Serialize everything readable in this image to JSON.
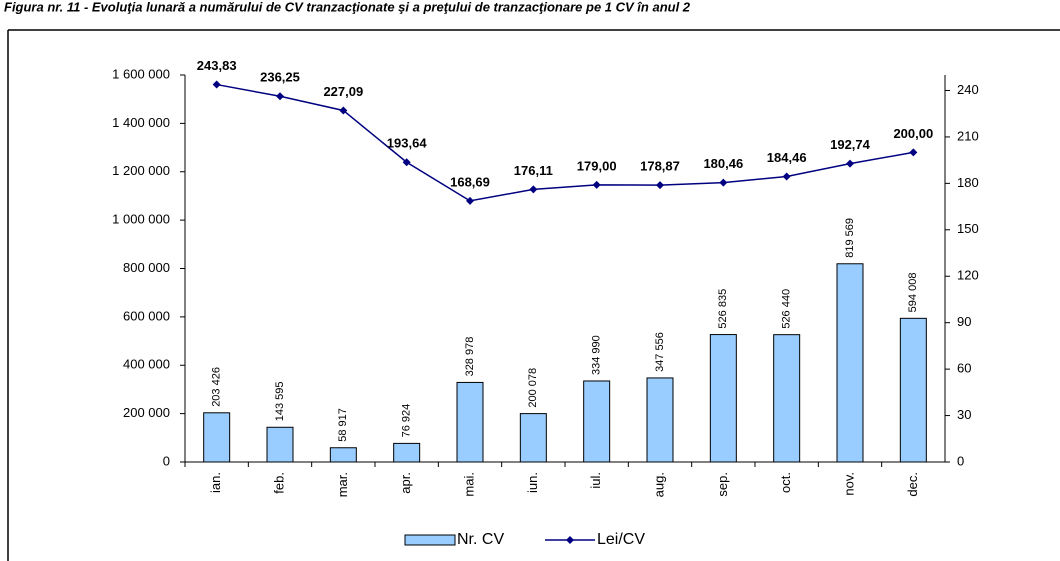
{
  "chart_data": {
    "type": "bar",
    "title": "Figura nr. 11 - Evoluţia lunară a numărului de CV tranzacţionate şi a preţului de tranzacţionare pe 1 CV în anul 2",
    "categories": [
      "ian.",
      "feb.",
      "mar.",
      "apr.",
      "mai.",
      "iun.",
      "iul.",
      "aug.",
      "sep.",
      "oct.",
      "nov.",
      "dec."
    ],
    "series": [
      {
        "name": "Nr. CV",
        "type": "bar",
        "color": "#99ccff",
        "values": [
          203426,
          143595,
          58917,
          76924,
          328978,
          200078,
          334990,
          347556,
          526835,
          526440,
          819569,
          594008
        ],
        "value_labels": [
          "203 426",
          "143 595",
          "58 917",
          "76 924",
          "328 978",
          "200 078",
          "334 990",
          "347 556",
          "526 835",
          "526 440",
          "819 569",
          "594 008"
        ]
      },
      {
        "name": "Lei/CV",
        "type": "line",
        "axis": "y2",
        "color": "#000080",
        "values": [
          243.83,
          236.25,
          227.09,
          193.64,
          168.69,
          176.11,
          179.0,
          178.87,
          180.46,
          184.46,
          192.74,
          200.0
        ],
        "value_labels": [
          "243,83",
          "236,25",
          "227,09",
          "193,64",
          "168,69",
          "176,11",
          "179,00",
          "178,87",
          "180,46",
          "184,46",
          "192,74",
          "200,00"
        ]
      }
    ],
    "ylim": [
      0,
      1600000
    ],
    "yticks": [
      0,
      {
        "value": 200000,
        "label": "200 000"
      },
      {
        "value": 400000,
        "label": "400 000"
      },
      {
        "value": 600000,
        "label": "600 000"
      },
      {
        "value": 800000,
        "label": "800 000"
      },
      {
        "value": 1000000,
        "label": "1 000 000"
      },
      {
        "value": 1200000,
        "label": "1 200 000"
      },
      {
        "value": 1400000,
        "label": "1 400 000"
      },
      {
        "value": 1600000,
        "label": "1 600 000"
      }
    ],
    "y2lim": [
      0,
      250
    ],
    "y2ticks": [
      0,
      30,
      60,
      90,
      120,
      150,
      180,
      210,
      240
    ],
    "grid": false,
    "legend": "bottom"
  }
}
